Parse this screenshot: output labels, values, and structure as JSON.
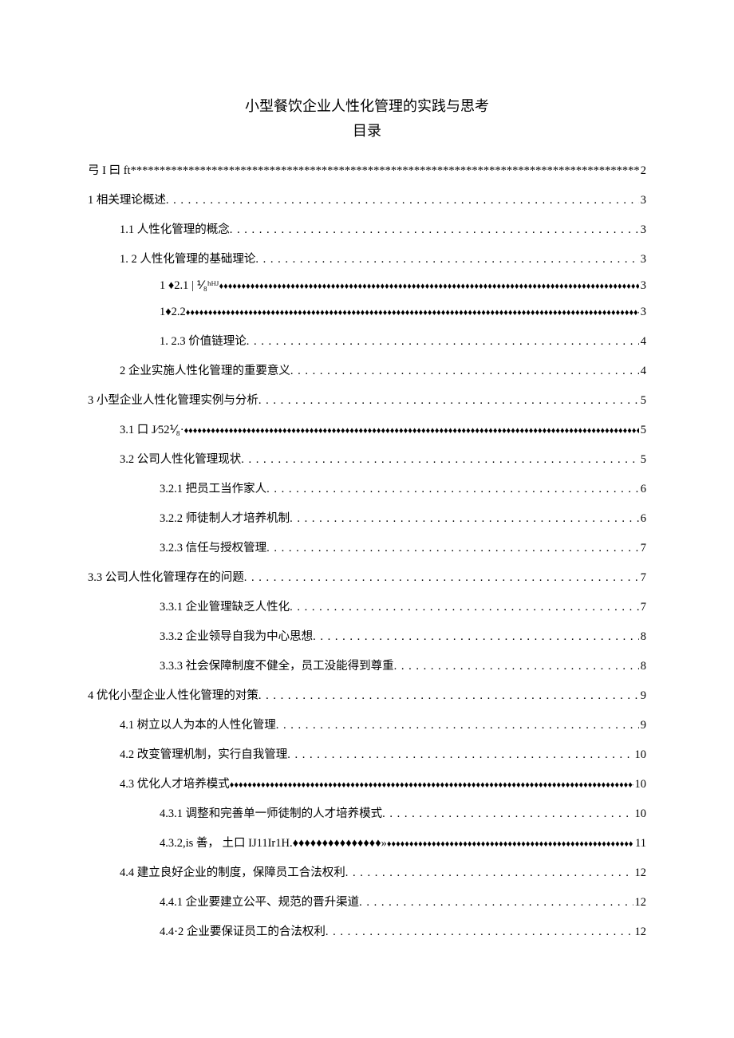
{
  "title": "小型餐饮企业人性化管理的实践与思考",
  "subtitle": "目录",
  "entries": [
    {
      "label": "弓 I 曰 ft",
      "page": "2",
      "fill": "stars",
      "level": 0
    },
    {
      "label": "1 相关理论概述 ",
      "page": "3",
      "fill": "dots",
      "level": 0
    },
    {
      "label": "1.1 人性化管理的概念 ",
      "page": "3",
      "fill": "dots",
      "level": 1
    },
    {
      "label": "1.   2 人性化管理的基础理论 ",
      "page": "3",
      "fill": "dots",
      "level": 1
    },
    {
      "label": "1   ♦2.1    | ⅟₈ʰᴴᴶ",
      "page": "3",
      "fill": "diamonds",
      "level": 2
    },
    {
      "label": "1♦2.2             ",
      "page": "3",
      "fill": "diamonds",
      "level": 2
    },
    {
      "label": "1.    2.3 价值链理论 ",
      "page": "4",
      "fill": "dots",
      "level": 2
    },
    {
      "label": "2 企业实施人性化管理的重要意义",
      "page": "4",
      "fill": "dots",
      "level": 1
    },
    {
      "label": "3 小型企业人性化管理实例与分析 ",
      "page": "5",
      "fill": "dots",
      "level": 0
    },
    {
      "label": "3.1 口 J⁄52⅟₈·",
      "page": "5",
      "fill": "diamonds",
      "level": 1
    },
    {
      "label": "3.2 公司人性化管理现状 ",
      "page": "5",
      "fill": "dots",
      "level": 1
    },
    {
      "label": "3.2.1 把员工当作家人",
      "page": "6",
      "fill": "dots",
      "level": 2
    },
    {
      "label": "3.2.2 师徒制人才培养机制",
      "page": "6",
      "fill": "dots",
      "level": 2
    },
    {
      "label": "3.2.3 信任与授权管理",
      "page": "7",
      "fill": "dots",
      "level": 2
    },
    {
      "label": "3.3 公司人性化管理存在的问题",
      "page": "7",
      "fill": "dots",
      "level": 0
    },
    {
      "label": "3.3.1 企业管理缺乏人性化",
      "page": "7",
      "fill": "dots",
      "level": 2
    },
    {
      "label": "3.3.2 企业领导自我为中心思想",
      "page": "8",
      "fill": "dots",
      "level": 2
    },
    {
      "label": "3.3.3 社会保障制度不健全，员工没能得到尊重",
      "page": "8",
      "fill": "dots",
      "level": 2
    },
    {
      "label": "4 优化小型企业人性化管理的对策 ",
      "page": "9",
      "fill": "dots",
      "level": 0
    },
    {
      "label": "4.1 树立以人为本的人性化管理 ",
      "page": "9",
      "fill": "dots",
      "level": 1
    },
    {
      "label": "4.2 改变管理机制，实行自我管理 ",
      "page": "10",
      "fill": "dots",
      "level": 1
    },
    {
      "label": "4.3 优化人才培养模式",
      "page": "10",
      "fill": "diamonds",
      "level": 1
    },
    {
      "label": "4.3.1 调整和完善单一师徒制的人才培养模式",
      "page": "10",
      "fill": "dots",
      "level": 2
    },
    {
      "label": "4.3.2,is 善， 土口 IJ11Ir1H.♦♦♦♦♦♦♦♦♦♦♦♦♦♦♦»",
      "page": "11",
      "fill": "diamonds",
      "level": 2
    },
    {
      "label": "4.4 建立良好企业的制度，保障员工合法权利 ",
      "page": "12",
      "fill": "dots",
      "level": 1
    },
    {
      "label": "4.4.1 企业要建立公平、规范的晋升渠道",
      "page": "12",
      "fill": "dots",
      "level": 2
    },
    {
      "label": "4.4·2 企业要保证员工的合法权利",
      "page": "12",
      "fill": "dots",
      "level": 2,
      "extraGap": true
    }
  ]
}
